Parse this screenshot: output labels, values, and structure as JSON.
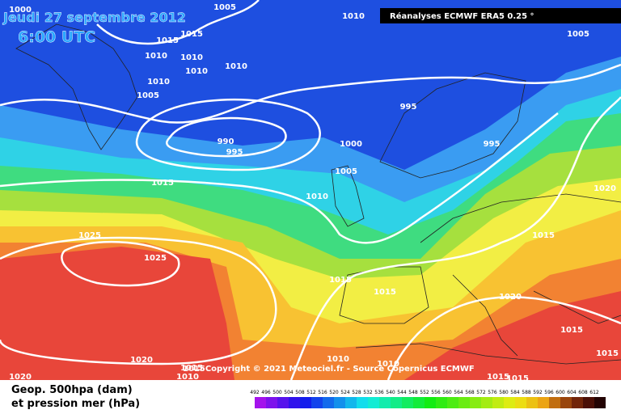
{
  "header": {
    "date": "Jeudi 27 septembre 2012",
    "time": "6:00 UTC",
    "source": "Réanalyses ECMWF ERA5 0.25 °"
  },
  "map": {
    "isobar_labels": [
      1000,
      1005,
      1010,
      1005,
      1015,
      1015,
      1010,
      1010,
      1010,
      1010,
      1010,
      1005,
      995,
      990,
      995,
      1000,
      995,
      1005,
      1015,
      1010,
      1020,
      1025,
      1015,
      1025,
      1015,
      1015,
      1020,
      1015,
      1015,
      1020,
      1010,
      1015,
      1010,
      1010,
      1020,
      1015,
      1015
    ],
    "copyright": "1015Copyright © 2021 Meteociel.fr - Source Copernicus ECMWF"
  },
  "legend": {
    "line1": "Geop. 500hpa (dam)",
    "line2": "et pression mer (hPa)",
    "scale": [
      492,
      496,
      500,
      504,
      508,
      512,
      516,
      520,
      524,
      528,
      532,
      536,
      540,
      544,
      548,
      552,
      556,
      560,
      564,
      568,
      572,
      576,
      580,
      584,
      588,
      592,
      596,
      600,
      604,
      608,
      612
    ]
  }
}
